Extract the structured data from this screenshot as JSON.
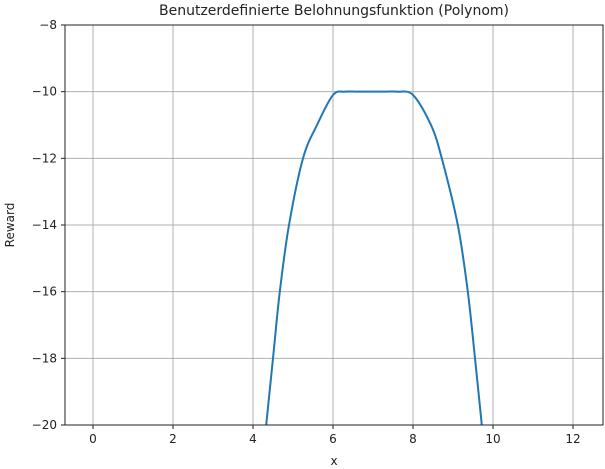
{
  "chart_data": {
    "type": "line",
    "title": "Benutzerdefinierte Belohnungsfunktion (Polynom)",
    "xlabel": "x",
    "ylabel": "Reward",
    "xlim": [
      -0.7,
      12.75
    ],
    "ylim": [
      -20,
      -8
    ],
    "xticks": [
      "0",
      "2",
      "4",
      "6",
      "8",
      "10",
      "12"
    ],
    "yticks": [
      "−8",
      "−10",
      "−12",
      "−14",
      "−16",
      "−18",
      "−20"
    ],
    "grid": true,
    "line_color": "#1f77b4",
    "series": [
      {
        "x": [
          4.33,
          4.5,
          4.67,
          4.9,
          5.25,
          5.6,
          6.0,
          6.3,
          6.6,
          7.0,
          7.3,
          7.6,
          8.0,
          8.45,
          8.72,
          9.12,
          9.37,
          9.55,
          9.72
        ],
        "y": [
          -20,
          -18,
          -16,
          -14,
          -12,
          -11,
          -10.1,
          -10.0,
          -10.0,
          -10.0,
          -10.0,
          -10.0,
          -10.1,
          -11,
          -12,
          -14,
          -16,
          -18,
          -20
        ]
      }
    ]
  }
}
